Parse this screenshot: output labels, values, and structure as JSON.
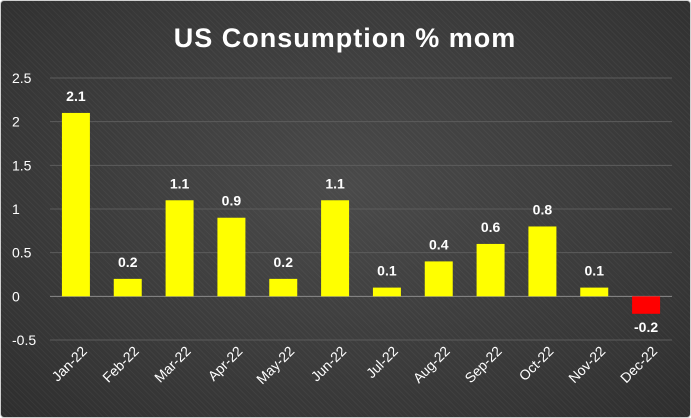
{
  "chart_data": {
    "type": "bar",
    "title": "US Consumption % mom",
    "xlabel": "",
    "ylabel": "",
    "categories": [
      "Jan-22",
      "Feb-22",
      "Mar-22",
      "Apr-22",
      "May-22",
      "Jun-22",
      "Jul-22",
      "Aug-22",
      "Sep-22",
      "Oct-22",
      "Nov-22",
      "Dec-22"
    ],
    "values": [
      2.1,
      0.2,
      1.1,
      0.9,
      0.2,
      1.1,
      0.1,
      0.4,
      0.6,
      0.8,
      0.1,
      -0.2
    ],
    "data_labels": [
      "2.1",
      "0.2",
      "1.1",
      "0.9",
      "0.2",
      "1.1",
      "0.1",
      "0.4",
      "0.6",
      "0.8",
      "0.1",
      "-0.2"
    ],
    "ylim": [
      -0.5,
      2.5
    ],
    "yticks": [
      -0.5,
      0,
      0.5,
      1,
      1.5,
      2,
      2.5
    ],
    "ytick_labels": [
      "-0.5",
      "0",
      "0.5",
      "1",
      "1.5",
      "2",
      "2.5"
    ],
    "grid": true,
    "legend": "none",
    "colors": {
      "positive": "#ffff00",
      "negative": "#ff0000",
      "background": "#3b3b3b",
      "text": "#ffffff"
    }
  }
}
